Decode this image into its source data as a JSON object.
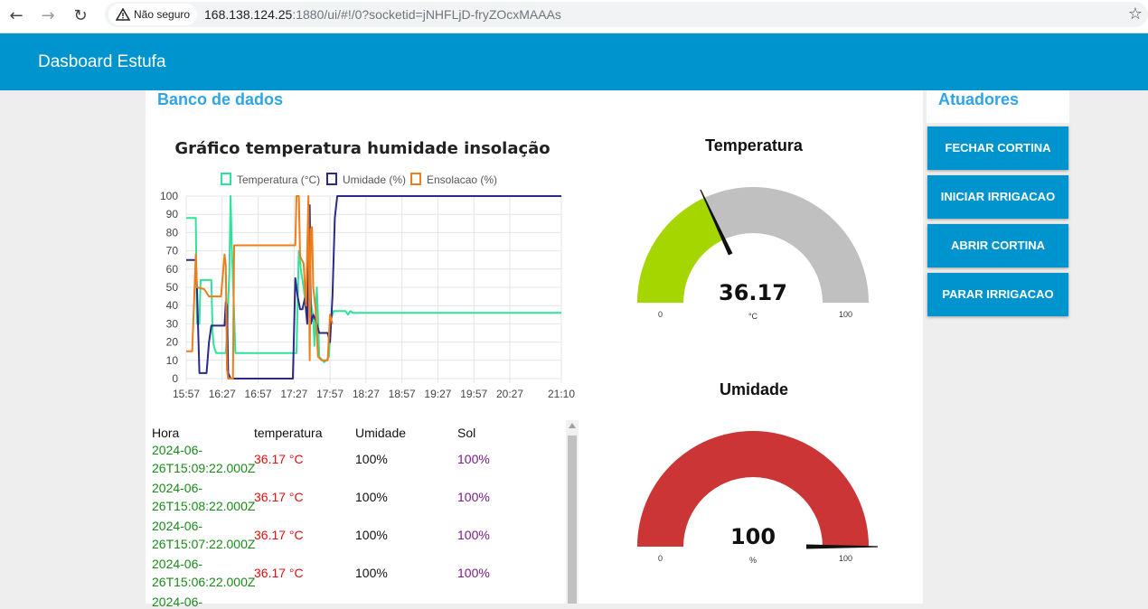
{
  "browser": {
    "back_icon": "←",
    "forward_icon": "→",
    "reload_icon": "↻",
    "security_label": "Não seguro",
    "url_host": "168.138.124.25",
    "url_rest": ":1880/ui/#!/0?socketid=jNHFLjD-fryZOcxMAAAs",
    "star_icon": "☆"
  },
  "app": {
    "title": "Dasboard Estufa"
  },
  "groups": {
    "database": "Banco de dados",
    "actuators": "Atuadores"
  },
  "chart": {
    "title": "Gráfico temperatura humidade insolação"
  },
  "chart_data": {
    "type": "line",
    "title": "Gráfico temperatura humidade insolação",
    "xlabel": "",
    "ylabel": "",
    "ylim": [
      0,
      100
    ],
    "y_ticks": [
      0,
      10,
      20,
      30,
      40,
      50,
      60,
      70,
      80,
      90,
      100
    ],
    "x_tick_labels": [
      "15:57",
      "16:27",
      "16:57",
      "17:27",
      "17:57",
      "18:27",
      "18:57",
      "19:27",
      "19:57",
      "20:27",
      "21:10"
    ],
    "x_ticks_minutes": [
      957,
      987,
      1017,
      1047,
      1077,
      1107,
      1137,
      1167,
      1197,
      1227,
      1270
    ],
    "legend_position": "top",
    "grid": true,
    "series": [
      {
        "name": "Temperatura (°C)",
        "color": "#2ee39a",
        "points": [
          [
            957,
            88
          ],
          [
            965,
            88
          ],
          [
            966,
            30
          ],
          [
            968,
            30
          ],
          [
            969,
            54
          ],
          [
            978,
            54
          ],
          [
            979,
            25
          ],
          [
            980,
            18
          ],
          [
            982,
            14
          ],
          [
            990,
            14
          ],
          [
            991,
            24
          ],
          [
            993,
            58
          ],
          [
            994,
            100
          ],
          [
            995,
            72
          ],
          [
            996,
            55
          ],
          [
            998,
            14
          ],
          [
            1049,
            14
          ],
          [
            1050,
            42
          ],
          [
            1051,
            70
          ],
          [
            1052,
            64
          ],
          [
            1053,
            58
          ],
          [
            1055,
            50
          ],
          [
            1057,
            38
          ],
          [
            1059,
            62
          ],
          [
            1060,
            92
          ],
          [
            1061,
            42
          ],
          [
            1063,
            34
          ],
          [
            1064,
            18
          ],
          [
            1066,
            50
          ],
          [
            1067,
            34
          ],
          [
            1068,
            12
          ],
          [
            1072,
            9
          ],
          [
            1074,
            10
          ],
          [
            1076,
            12
          ],
          [
            1078,
            33
          ],
          [
            1080,
            37
          ],
          [
            1090,
            37
          ],
          [
            1092,
            35
          ],
          [
            1094,
            37
          ],
          [
            1096,
            36
          ],
          [
            1270,
            36
          ]
        ]
      },
      {
        "name": "Umidade (%)",
        "color": "#2a2a8a",
        "points": [
          [
            957,
            65
          ],
          [
            965,
            65
          ],
          [
            966,
            50
          ],
          [
            968,
            3
          ],
          [
            974,
            3
          ],
          [
            976,
            20
          ],
          [
            978,
            29
          ],
          [
            989,
            29
          ],
          [
            990,
            42
          ],
          [
            991,
            40
          ],
          [
            992,
            3
          ],
          [
            994,
            0
          ],
          [
            1046,
            0
          ],
          [
            1048,
            55
          ],
          [
            1050,
            45
          ],
          [
            1052,
            38
          ],
          [
            1054,
            38
          ],
          [
            1056,
            44
          ],
          [
            1058,
            30
          ],
          [
            1060,
            95
          ],
          [
            1061,
            30
          ],
          [
            1063,
            35
          ],
          [
            1065,
            32
          ],
          [
            1068,
            25
          ],
          [
            1075,
            25
          ],
          [
            1077,
            20
          ],
          [
            1079,
            45
          ],
          [
            1081,
            88
          ],
          [
            1083,
            100
          ],
          [
            1270,
            100
          ]
        ]
      },
      {
        "name": "Ensolacao (%)",
        "color": "#f07c1a",
        "points": [
          [
            957,
            15
          ],
          [
            962,
            15
          ],
          [
            964,
            50
          ],
          [
            965,
            68
          ],
          [
            966,
            50
          ],
          [
            972,
            49
          ],
          [
            976,
            45
          ],
          [
            986,
            45
          ],
          [
            989,
            68
          ],
          [
            990,
            62
          ],
          [
            991,
            5
          ],
          [
            992,
            0
          ],
          [
            996,
            0
          ],
          [
            997,
            73
          ],
          [
            1048,
            73
          ],
          [
            1049,
            100
          ],
          [
            1051,
            100
          ],
          [
            1052,
            67
          ],
          [
            1055,
            63
          ],
          [
            1057,
            40
          ],
          [
            1059,
            100
          ],
          [
            1060,
            10
          ],
          [
            1061,
            82
          ],
          [
            1062,
            83
          ],
          [
            1063,
            50
          ],
          [
            1065,
            38
          ],
          [
            1067,
            12
          ],
          [
            1070,
            10
          ],
          [
            1075,
            10
          ],
          [
            1077,
            35
          ],
          [
            1079,
            30
          ]
        ]
      }
    ]
  },
  "table": {
    "headers": [
      "Hora",
      "temperatura",
      "Umidade",
      "Sol"
    ],
    "rows": [
      {
        "hora_l1": "2024-06-",
        "hora_l2": "26T15:09:22.000Z",
        "temperatura": "36.17 °C",
        "umidade": "100%",
        "sol": "100%"
      },
      {
        "hora_l1": "2024-06-",
        "hora_l2": "26T15:08:22.000Z",
        "temperatura": "36.17 °C",
        "umidade": "100%",
        "sol": "100%"
      },
      {
        "hora_l1": "2024-06-",
        "hora_l2": "26T15:07:22.000Z",
        "temperatura": "36.17 °C",
        "umidade": "100%",
        "sol": "100%"
      },
      {
        "hora_l1": "2024-06-",
        "hora_l2": "26T15:06:22.000Z",
        "temperatura": "36.17 °C",
        "umidade": "100%",
        "sol": "100%"
      },
      {
        "hora_l1": "2024-06-",
        "hora_l2": "",
        "temperatura": "",
        "umidade": "",
        "sol": ""
      }
    ],
    "colors": {
      "hora": "#1a8a1a",
      "temperatura": "#e01010",
      "umidade": "#111111",
      "sol": "#7a1a8a"
    }
  },
  "gauges": {
    "temperature": {
      "title": "Temperatura",
      "value": 36.17,
      "value_label": "36.17",
      "units": "°C",
      "min": 0,
      "max": 100,
      "min_label": "0",
      "max_label": "100",
      "fill_color": "#a6d600",
      "track_color": "#c0c0c0"
    },
    "humidity": {
      "title": "Umidade",
      "value": 100,
      "value_label": "100",
      "units": "%",
      "min": 0,
      "max": 100,
      "min_label": "0",
      "max_label": "100",
      "fill_color": "#cc3535",
      "track_color": "#c0c0c0"
    }
  },
  "actuators": {
    "buttons": [
      "FECHAR CORTINA",
      "INICIAR IRRIGACAO",
      "ABRIR CORTINA",
      "PARAR IRRIGACAO"
    ]
  }
}
